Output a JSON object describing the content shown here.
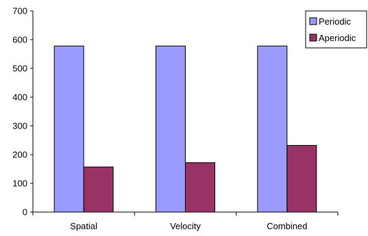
{
  "chart_data": {
    "type": "bar",
    "categories": [
      "Spatial",
      "Velocity",
      "Combined"
    ],
    "series": [
      {
        "name": "Periodic",
        "values": [
          578,
          578,
          578
        ],
        "color": "#9999ff"
      },
      {
        "name": "Aperiodic",
        "values": [
          157,
          172,
          232
        ],
        "color": "#993366"
      }
    ],
    "yticks": [
      "0",
      "100",
      "200",
      "300",
      "400",
      "500",
      "600",
      "700"
    ],
    "ylim": [
      0,
      700
    ],
    "grid": false,
    "legend_position": "top-right",
    "title": "",
    "xlabel": "",
    "ylabel": ""
  }
}
